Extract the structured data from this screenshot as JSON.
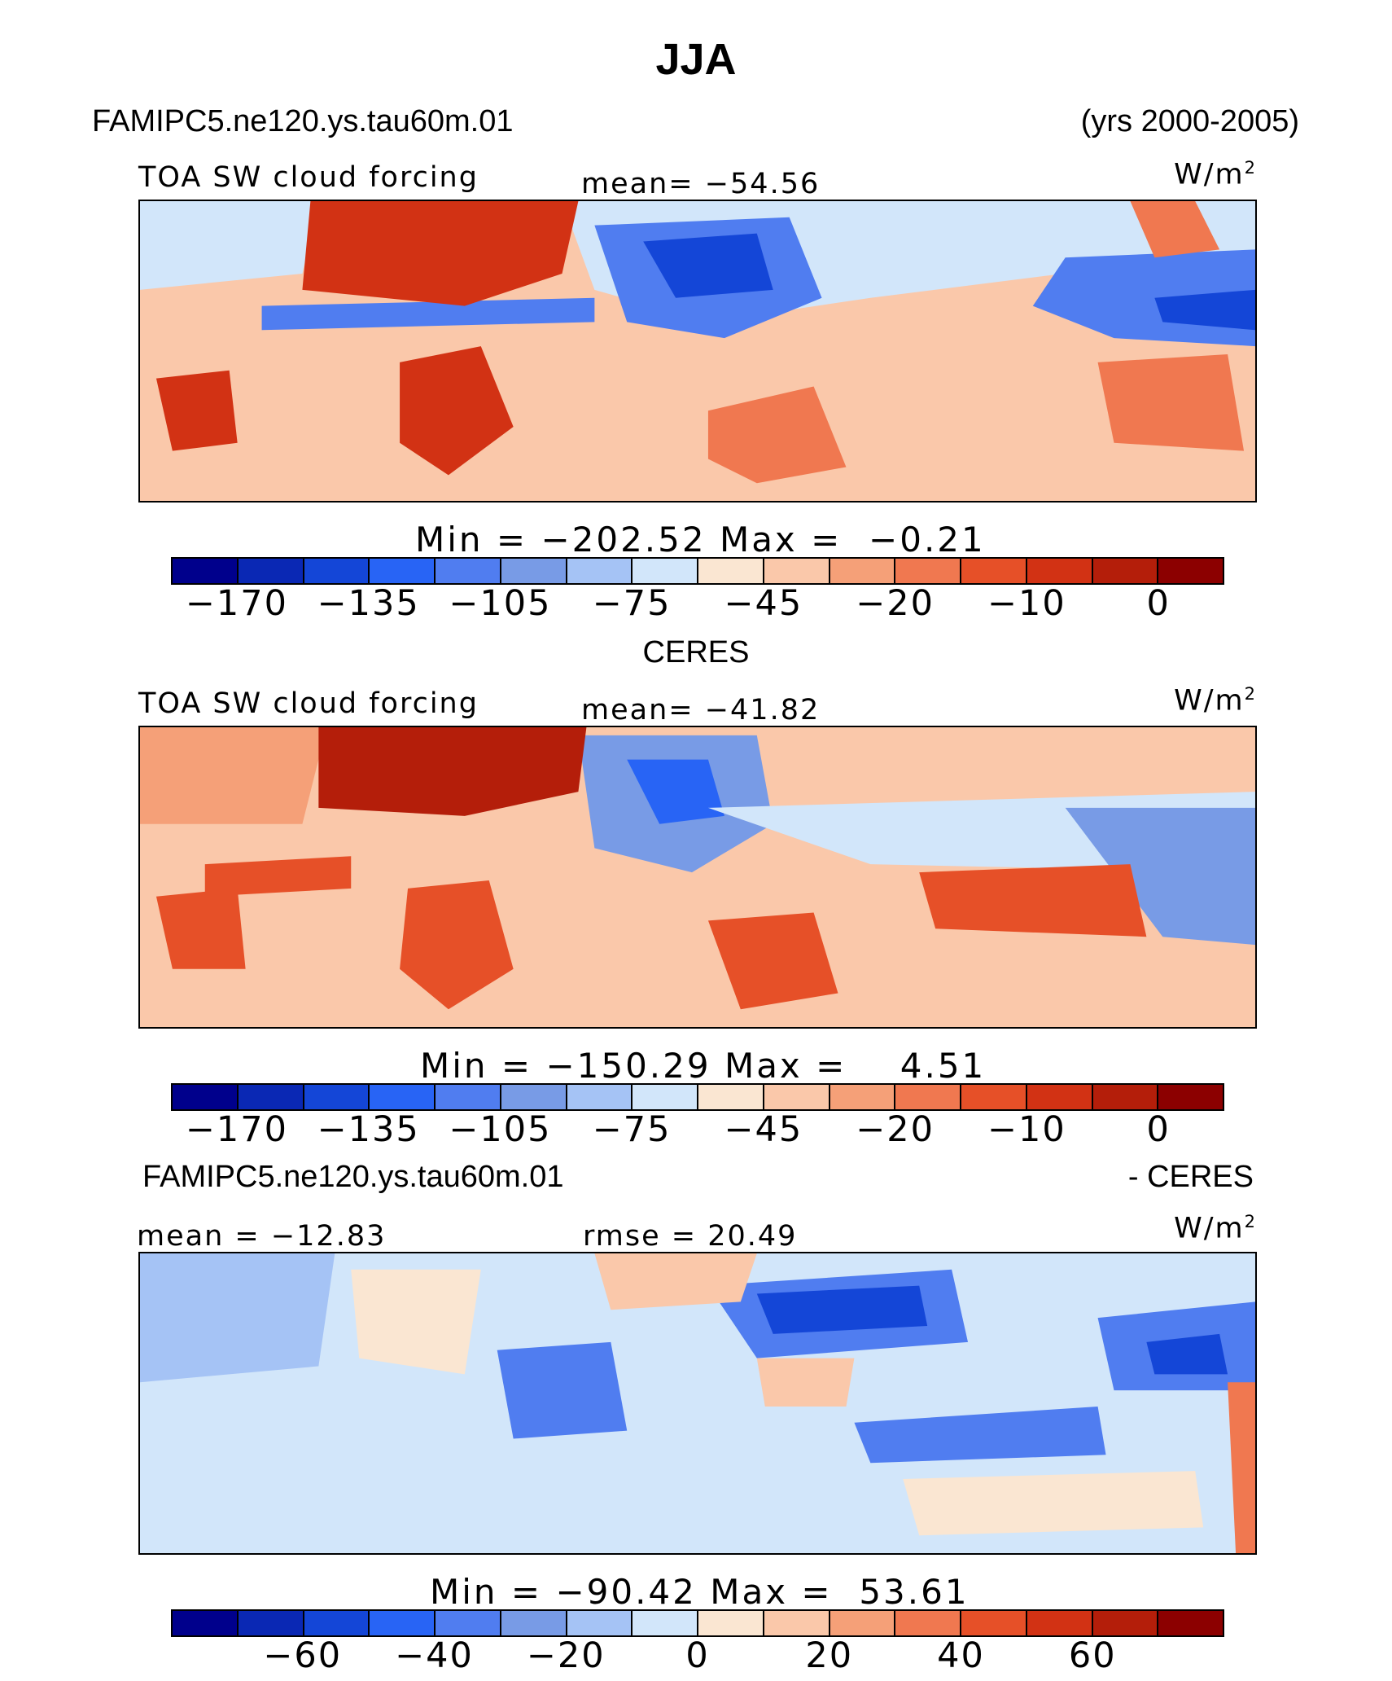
{
  "title": "JJA",
  "panel1": {
    "case": "FAMIPC5.ne120.ys.tau60m.01",
    "years": "(yrs 2000-2005)",
    "variable": "TOA SW cloud forcing",
    "mean": "mean= −54.56",
    "units": "W/m",
    "units_sup": "2",
    "min_label": "Min",
    "min_value": "−202.52",
    "max_label": "Max",
    "max_value": "−0.21"
  },
  "panel2": {
    "case": "CERES",
    "variable": "TOA SW cloud forcing",
    "mean": "mean= −41.82",
    "units": "W/m",
    "units_sup": "2",
    "min_label": "Min",
    "min_value": "−150.29",
    "max_label": "Max",
    "max_value": "4.51"
  },
  "panel3": {
    "case": "FAMIPC5.ne120.ys.tau60m.01",
    "case_suffix": "- CERES",
    "mean": "mean = −12.83",
    "rmse": "rmse =  20.49",
    "units": "W/m",
    "units_sup": "2",
    "min_label": "Min",
    "min_value": "−90.42",
    "max_label": "Max",
    "max_value": "53.61"
  },
  "colorbar_colors": [
    "#00008c",
    "#0a28b4",
    "#1446d7",
    "#2864f5",
    "#507df0",
    "#789be6",
    "#a5c3f5",
    "#d2e6fa",
    "#fae6d2",
    "#fac8aa",
    "#f5a078",
    "#f07850",
    "#e65028",
    "#d23214",
    "#b41e0a",
    "#8c0000"
  ],
  "colorbar_ticks_main": [
    "−170",
    "−135",
    "−105",
    "−75",
    "−45",
    "−20",
    "−10",
    "0"
  ],
  "colorbar_ticks_diff": [
    "−60",
    "−40",
    "−20",
    "0",
    "20",
    "40",
    "60"
  ],
  "map_palettes": {
    "panel1": {
      "bg": "#fac8aa",
      "blue": "#507df0",
      "deepblue": "#1446d7",
      "red": "#d23214",
      "orange": "#f07850",
      "pale": "#d2e6fa"
    },
    "panel2": {
      "bg": "#fac8aa",
      "blue": "#789be6",
      "deepblue": "#2864f5",
      "red": "#b41e0a",
      "orange": "#e65028",
      "pale": "#d2e6fa"
    },
    "panel3": {
      "bg": "#d2e6fa",
      "blue": "#507df0",
      "deepblue": "#1446d7",
      "red": "#f07850",
      "orange": "#fac8aa",
      "pale": "#a5c3f5"
    }
  }
}
